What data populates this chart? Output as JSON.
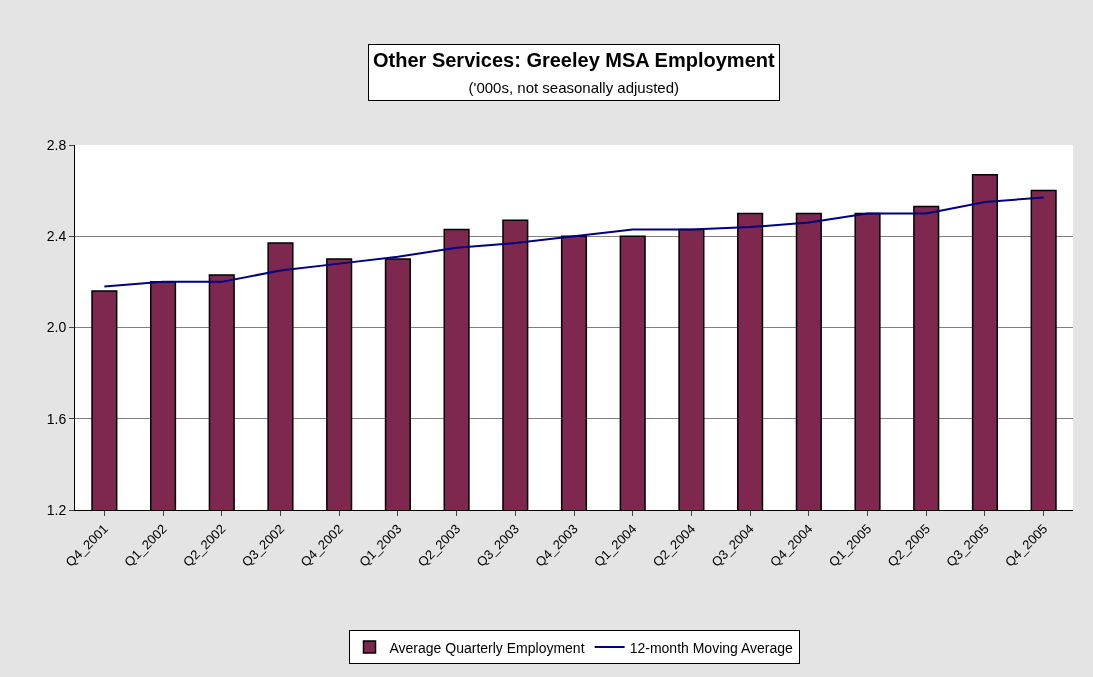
{
  "chart_data": {
    "type": "bar",
    "title": "Other Services: Greeley MSA Employment",
    "subtitle": "('000s, not seasonally adjusted)",
    "categories": [
      "Q4_2001",
      "Q1_2002",
      "Q2_2002",
      "Q3_2002",
      "Q4_2002",
      "Q1_2003",
      "Q2_2003",
      "Q3_2003",
      "Q4_2003",
      "Q1_2004",
      "Q2_2004",
      "Q3_2004",
      "Q4_2004",
      "Q1_2005",
      "Q2_2005",
      "Q3_2005",
      "Q4_2005"
    ],
    "series": [
      {
        "name": "Average Quarterly Employment",
        "color": "#7e2850",
        "values": [
          2.16,
          2.2,
          2.23,
          2.37,
          2.3,
          2.3,
          2.43,
          2.47,
          2.4,
          2.4,
          2.43,
          2.5,
          2.5,
          2.5,
          2.53,
          2.67,
          2.6
        ]
      },
      {
        "name": "12-month Moving Average",
        "type": "line",
        "color": "#000080",
        "values": [
          2.18,
          2.2,
          2.2,
          2.25,
          2.28,
          2.31,
          2.35,
          2.37,
          2.4,
          2.43,
          2.43,
          2.44,
          2.46,
          2.5,
          2.5,
          2.55,
          2.57
        ]
      }
    ],
    "ylim": [
      1.2,
      2.8
    ],
    "yticks": [
      {
        "value": 1.2,
        "label": "1.2"
      },
      {
        "value": 1.6,
        "label": "1.6"
      },
      {
        "value": 2.0,
        "label": "2.0"
      },
      {
        "value": 2.4,
        "label": "2.4"
      },
      {
        "value": 2.8,
        "label": "2.8"
      }
    ],
    "grid": "y",
    "legend": "bottom",
    "marker": "none",
    "line_style": "solid"
  }
}
